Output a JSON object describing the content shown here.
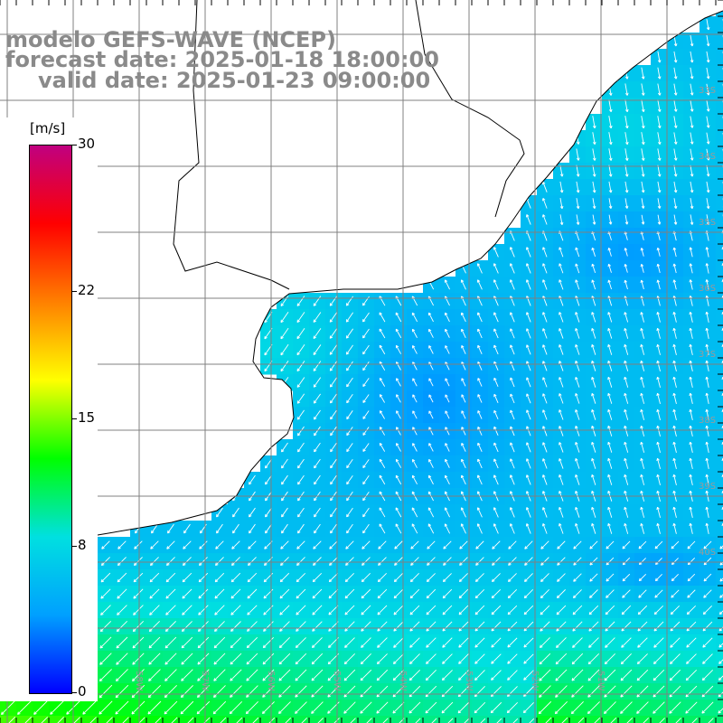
{
  "title": {
    "model": "modelo GEFS-WAVE (NCEP)",
    "forecast": "forecast date: 2025-01-18 18:00:00",
    "valid": "valid date: 2025-01-23 09:00:00"
  },
  "colorbar": {
    "unit": "[m/s]",
    "ticks": [
      "30",
      "22",
      "15",
      "8",
      "0"
    ],
    "tick_values": [
      30,
      22,
      15,
      8,
      0
    ],
    "range": [
      0,
      30
    ],
    "stops": [
      "#0000ff",
      "#00a0ff",
      "#00e0e0",
      "#00ff00",
      "#ffff00",
      "#ff8000",
      "#ff0000",
      "#c00080"
    ]
  },
  "lat_labels": [
    "33S",
    "34S",
    "35S",
    "36S",
    "37S",
    "38S",
    "39S",
    "40S"
  ],
  "lon_labels": [
    "59W",
    "58W",
    "57W",
    "56W",
    "55W",
    "54W",
    "53W",
    "52W",
    "51W"
  ],
  "colors": {
    "land": "#ffffff",
    "coast": "#000000",
    "grid": "#808080",
    "arrow": "#ffffff"
  }
}
